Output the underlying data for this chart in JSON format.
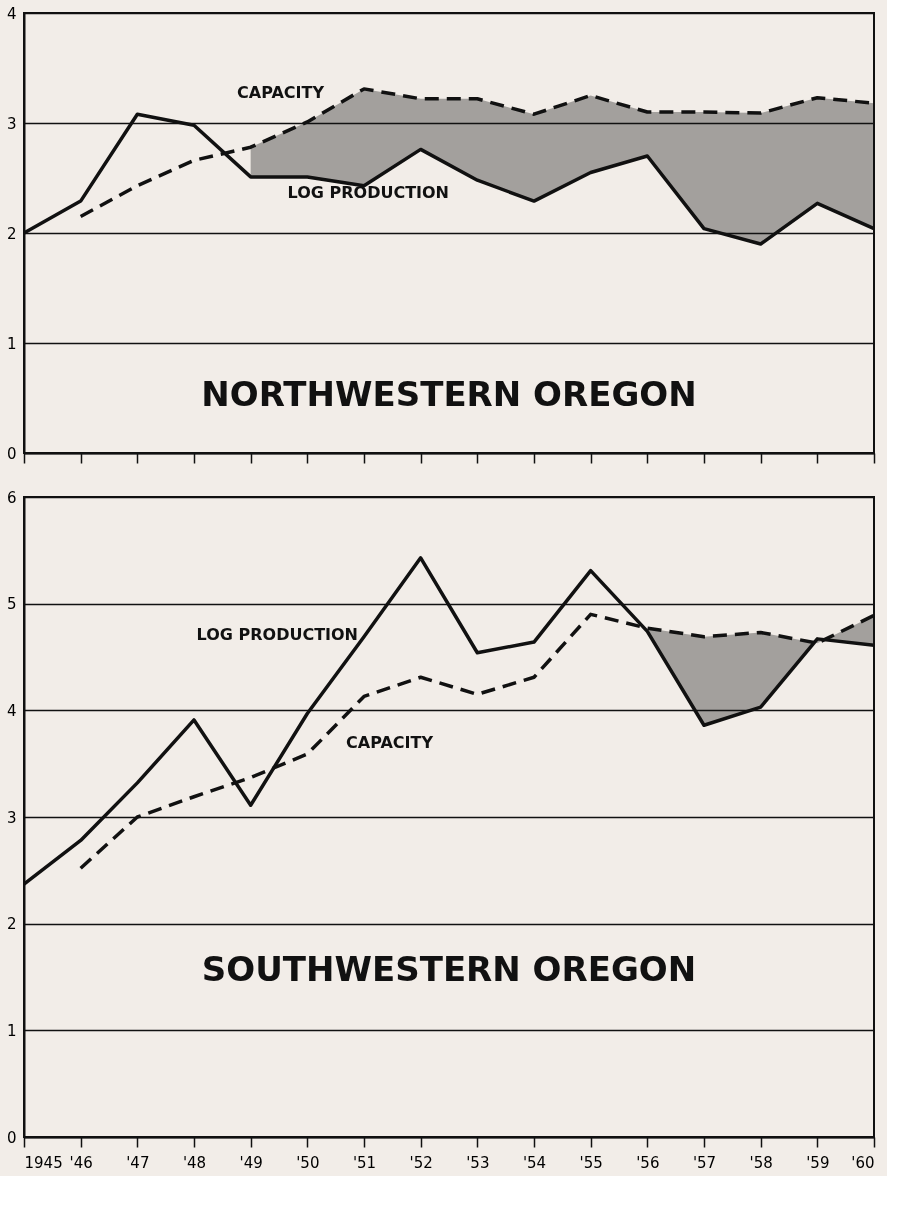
{
  "chart_data": [
    {
      "type": "line",
      "title": "NORTHWESTERN OREGON",
      "x": [
        1945,
        1946,
        1947,
        1948,
        1949,
        1950,
        1951,
        1952,
        1953,
        1954,
        1955,
        1956,
        1957,
        1958,
        1959,
        1960
      ],
      "series": [
        {
          "color": "#111111",
          "line_style": "solid",
          "values": [
            2.0,
            2.29,
            3.08,
            2.98,
            2.51,
            2.51,
            2.43,
            2.76,
            2.48,
            2.29,
            2.55,
            2.7,
            2.04,
            1.9,
            2.27,
            2.04
          ]
        },
        {
          "color": "#111111",
          "line_style": "dashed",
          "values": [
            null,
            2.15,
            2.43,
            2.66,
            2.78,
            3.01,
            3.31,
            3.22,
            3.22,
            3.08,
            3.25,
            3.1,
            3.1,
            3.09,
            3.23,
            3.18
          ],
          "lower": [
            null,
            null,
            null,
            null,
            2.51,
            2.51,
            2.43,
            2.76,
            2.48,
            2.29,
            2.55,
            2.7,
            2.04,
            1.9,
            2.27,
            2.04
          ],
          "upper": [
            null,
            null,
            null,
            null,
            2.78,
            3.01,
            3.31,
            3.22,
            3.22,
            3.08,
            3.25,
            3.1,
            3.1,
            3.09,
            3.23,
            3.18
          ]
        }
      ],
      "annotations": [
        "CAPACITY",
        "LOG PRODUCTION"
      ],
      "xlim": [
        1945,
        1960
      ],
      "xticks": [
        1945,
        1946,
        1947,
        1948,
        1949,
        1950,
        1951,
        1952,
        1953,
        1954,
        1955,
        1956,
        1957,
        1958,
        1959,
        1960
      ],
      "ylim": [
        0,
        4
      ],
      "yticks": [
        0,
        1,
        2,
        3,
        4
      ],
      "grid": "y",
      "tick_labels": "y",
      "marker": "none"
    },
    {
      "type": "line",
      "title": "SOUTHWESTERN OREGON",
      "x": [
        1945,
        1946,
        1947,
        1948,
        1949,
        1950,
        1951,
        1952,
        1953,
        1954,
        1955,
        1956,
        1957,
        1958,
        1959,
        1960
      ],
      "series": [
        {
          "color": "#111111",
          "line_style": "solid",
          "values": [
            2.37,
            2.78,
            3.32,
            3.91,
            3.11,
            3.97,
            4.69,
            5.43,
            4.54,
            4.64,
            5.31,
            4.74,
            3.86,
            4.03,
            4.67,
            4.61
          ]
        },
        {
          "color": "#111111",
          "line_style": "dashed",
          "values": [
            null,
            2.52,
            3.0,
            3.19,
            3.37,
            3.59,
            4.13,
            4.31,
            4.15,
            4.31,
            4.9,
            4.77,
            4.69,
            4.73,
            4.63,
            4.89
          ],
          "lower": [
            null,
            null,
            null,
            null,
            null,
            null,
            null,
            null,
            null,
            null,
            null,
            4.74,
            3.86,
            4.03,
            4.67,
            4.61
          ],
          "upper": [
            null,
            null,
            null,
            null,
            null,
            null,
            null,
            null,
            null,
            null,
            null,
            4.77,
            4.69,
            4.73,
            4.63,
            4.89
          ]
        }
      ],
      "annotations": [
        "LOG PRODUCTION",
        "CAPACITY"
      ],
      "xlim": [
        1945,
        1960
      ],
      "xticks": [
        {
          "value": 1945,
          "label": "1945"
        },
        {
          "value": 1946,
          "label": "'46"
        },
        {
          "value": 1947,
          "label": "'47"
        },
        {
          "value": 1948,
          "label": "'48"
        },
        {
          "value": 1949,
          "label": "'49"
        },
        {
          "value": 1950,
          "label": "'50"
        },
        {
          "value": 1951,
          "label": "'51"
        },
        {
          "value": 1952,
          "label": "'52"
        },
        {
          "value": 1953,
          "label": "'53"
        },
        {
          "value": 1954,
          "label": "'54"
        },
        {
          "value": 1955,
          "label": "'55"
        },
        {
          "value": 1956,
          "label": "'56"
        },
        {
          "value": 1957,
          "label": "'57"
        },
        {
          "value": 1958,
          "label": "'58"
        },
        {
          "value": 1959,
          "label": "'59"
        },
        {
          "value": 1960,
          "label": "'60"
        }
      ],
      "ylim": [
        0,
        6
      ],
      "yticks": [
        0,
        1,
        2,
        3,
        4,
        5,
        6
      ],
      "grid": "y",
      "marker": "none"
    }
  ]
}
